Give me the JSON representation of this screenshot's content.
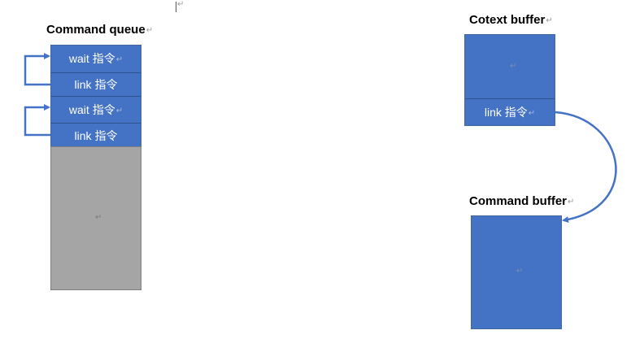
{
  "diagram": {
    "command_queue": {
      "title": "Command queue",
      "cells": [
        {
          "label": "wait 指令"
        },
        {
          "label": "link 指令"
        },
        {
          "label": "wait 指令"
        },
        {
          "label": "link 指令"
        }
      ]
    },
    "context_buffer": {
      "title": "Cotext buffer",
      "link_label": "link 指令"
    },
    "command_buffer": {
      "title": "Command buffer"
    },
    "para_mark": "↵",
    "colors": {
      "block_blue": "#4472c4",
      "block_gray": "#a5a5a5",
      "arrow_blue": "#4472c4"
    }
  }
}
